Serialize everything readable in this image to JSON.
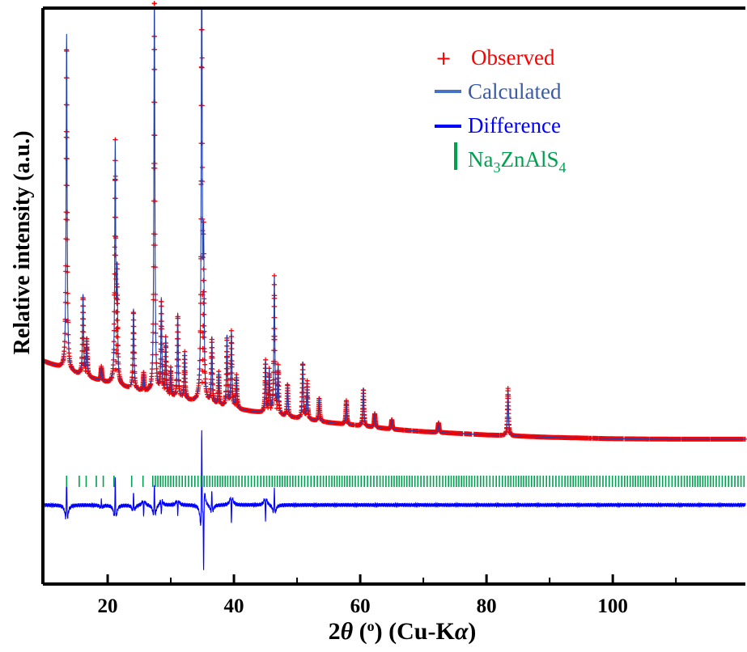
{
  "chart_data": {
    "type": "line",
    "title": "",
    "xlabel": {
      "prefix": "2",
      "symbol": "θ",
      "unit": " (",
      "unit_sup": "o",
      "unit_close": ") (Cu-K",
      "source_symbol": "α",
      "source_close": ")"
    },
    "ylabel": "Relative intensity (a.u.)",
    "xlim": [
      10,
      121
    ],
    "x_ticks": [
      20,
      40,
      60,
      80,
      100
    ],
    "x_tick_labels": [
      "20",
      "40",
      "60",
      "80",
      "100"
    ],
    "y_tick_labels": [],
    "grid": false,
    "legend_position": "top-right",
    "legend": [
      {
        "name": "Observed",
        "marker": "+",
        "color": "#ff0000"
      },
      {
        "name": "Calculated",
        "marker": "line",
        "color": "#4472c4"
      },
      {
        "name": "Difference",
        "marker": "line",
        "color": "#0000ff"
      },
      {
        "name_parts": [
          "Na",
          "3",
          "ZnAlS",
          "4"
        ],
        "marker": "bar",
        "color": "#00a050"
      }
    ],
    "colors": {
      "observed": "#ff0000",
      "calculated": "#1f3fa8",
      "difference": "#0000ff",
      "reflections": "#00a050"
    },
    "series": {
      "background": {
        "x": [
          10,
          15,
          20,
          25,
          30,
          35,
          40,
          45,
          50,
          55,
          60,
          65,
          70,
          80,
          90,
          100,
          110,
          121
        ],
        "y": [
          0.253,
          0.227,
          0.207,
          0.19,
          0.176,
          0.164,
          0.153,
          0.143,
          0.133,
          0.124,
          0.117,
          0.11,
          0.105,
          0.098,
          0.093,
          0.09,
          0.089,
          0.089
        ]
      },
      "peaks": [
        {
          "x": 13.5,
          "h": 0.71,
          "d": 0.06
        },
        {
          "x": 16.1,
          "h": 0.17,
          "d": 0.0
        },
        {
          "x": 16.7,
          "h": 0.08,
          "d": 0.0
        },
        {
          "x": 19.0,
          "h": 0.03,
          "d": 0.01
        },
        {
          "x": 21.2,
          "h": 0.5,
          "d": 0.055
        },
        {
          "x": 21.5,
          "h": 0.22,
          "d": 0.0
        },
        {
          "x": 24.1,
          "h": 0.17,
          "d": 0.025
        },
        {
          "x": 25.7,
          "h": 0.04,
          "d": -0.02
        },
        {
          "x": 27.4,
          "h": 0.87,
          "d": 0.045
        },
        {
          "x": 28.5,
          "h": 0.2,
          "d": -0.02
        },
        {
          "x": 29.2,
          "h": 0.12,
          "d": 0.0
        },
        {
          "x": 30.0,
          "h": 0.06,
          "d": 0.0
        },
        {
          "x": 31.1,
          "h": 0.18,
          "d": -0.02
        },
        {
          "x": 32.2,
          "h": 0.1,
          "d": 0.0
        },
        {
          "x": 34.9,
          "h": 1.0,
          "d": 0.13
        },
        {
          "x": 35.2,
          "h": 0.3,
          "d": -0.1
        },
        {
          "x": 36.5,
          "h": 0.14,
          "d": 0.03
        },
        {
          "x": 37.6,
          "h": 0.07,
          "d": 0.0
        },
        {
          "x": 38.9,
          "h": 0.15,
          "d": 0.0
        },
        {
          "x": 39.6,
          "h": 0.16,
          "d": -0.035
        },
        {
          "x": 40.4,
          "h": 0.07,
          "d": 0.0
        },
        {
          "x": 45.0,
          "h": 0.11,
          "d": -0.03
        },
        {
          "x": 45.6,
          "h": 0.09,
          "d": 0.0
        },
        {
          "x": 46.4,
          "h": 0.29,
          "d": 0.035
        },
        {
          "x": 47.0,
          "h": 0.1,
          "d": 0.0
        },
        {
          "x": 48.5,
          "h": 0.07,
          "d": 0.0
        },
        {
          "x": 50.9,
          "h": 0.12,
          "d": 0.0
        },
        {
          "x": 51.6,
          "h": 0.08,
          "d": 0.0
        },
        {
          "x": 53.5,
          "h": 0.05,
          "d": 0.0
        },
        {
          "x": 57.8,
          "h": 0.05,
          "d": 0.0
        },
        {
          "x": 60.5,
          "h": 0.08,
          "d": 0.0
        },
        {
          "x": 62.3,
          "h": 0.03,
          "d": 0.0
        },
        {
          "x": 65.0,
          "h": 0.02,
          "d": 0.0
        },
        {
          "x": 72.4,
          "h": 0.02,
          "d": 0.0
        },
        {
          "x": 83.4,
          "h": 0.1,
          "d": 0.0
        }
      ],
      "difference_baseline": -0.05,
      "reflection_row_y": 0.0,
      "reflections": {
        "sparse": [
          13.5,
          15.5,
          16.6,
          18.2,
          19.3,
          21.0,
          23.8,
          25.6
        ],
        "dense_start": 27.0,
        "dense_end": 121.0,
        "dense_step": 0.45
      }
    }
  }
}
